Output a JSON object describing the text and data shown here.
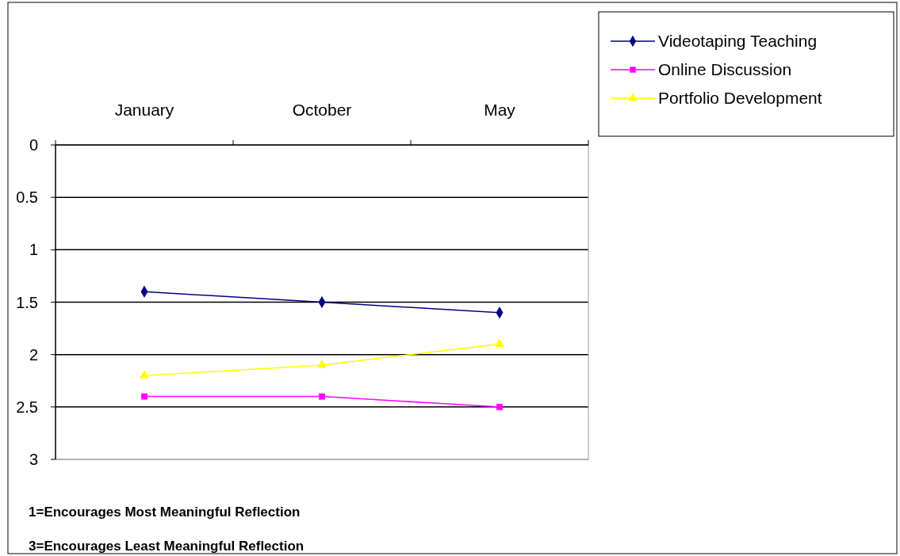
{
  "chart_data": {
    "type": "line",
    "categories": [
      "January",
      "October",
      "May"
    ],
    "series": [
      {
        "name": "Videotaping Teaching",
        "color": "#000080",
        "values": [
          1.4,
          1.5,
          1.6
        ],
        "marker": "diamond"
      },
      {
        "name": "Online Discussion",
        "color": "#ff00ff",
        "values": [
          2.4,
          2.4,
          2.5
        ],
        "marker": "square"
      },
      {
        "name": "Portfolio Development",
        "color": "#ffff00",
        "values": [
          2.2,
          2.1,
          1.9
        ],
        "marker": "triangle"
      }
    ],
    "ylim": [
      3,
      0
    ],
    "yticks": [
      0,
      0.5,
      1,
      1.5,
      2,
      2.5,
      3
    ],
    "grid": "y",
    "legend": "top right",
    "annotations": [
      "1=Encourages Most Meaningful Reflection",
      "3=Encourages Least Meaningful Reflection"
    ]
  }
}
